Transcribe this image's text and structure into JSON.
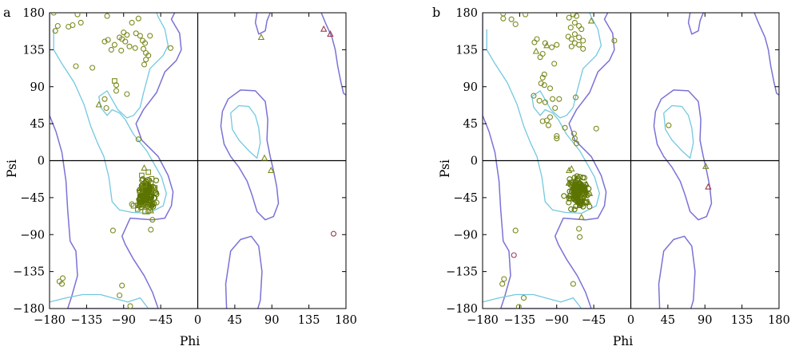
{
  "chart_data": [
    {
      "type": "scatter",
      "panel": "a",
      "xlabel": "Phi",
      "ylabel": "Psi",
      "xlim": [
        -180,
        180
      ],
      "ylim": [
        -180,
        180
      ],
      "xticks": [
        -180,
        -135,
        -90,
        -45,
        0,
        45,
        90,
        135,
        180
      ],
      "yticks": [
        180,
        135,
        90,
        45,
        0,
        -45,
        -90,
        -135,
        -180
      ],
      "cluster": {
        "center": [
          -62,
          -40
        ],
        "spread": [
          5,
          8
        ],
        "count": 160,
        "seed": 11
      },
      "points": {
        "circle": [
          [
            -175,
            180
          ],
          [
            -146,
            178
          ],
          [
            -142,
            168
          ],
          [
            -157,
            163
          ],
          [
            -152,
            165
          ],
          [
            -110,
            176
          ],
          [
            -80,
            168
          ],
          [
            -72,
            173
          ],
          [
            -90,
            156
          ],
          [
            -86,
            153
          ],
          [
            -95,
            150
          ],
          [
            -92,
            148
          ],
          [
            -88,
            145
          ],
          [
            -75,
            155
          ],
          [
            -70,
            152
          ],
          [
            -67,
            146
          ],
          [
            -64,
            143
          ],
          [
            -58,
            152
          ],
          [
            -83,
            139
          ],
          [
            -76,
            137
          ],
          [
            -66,
            136
          ],
          [
            -63,
            131
          ],
          [
            -60,
            128
          ],
          [
            -109,
            147
          ],
          [
            -113,
            145
          ],
          [
            -101,
            141
          ],
          [
            -105,
            135
          ],
          [
            -93,
            134
          ],
          [
            -63,
            123
          ],
          [
            -65,
            117
          ],
          [
            -148,
            115
          ],
          [
            -128,
            113
          ],
          [
            -99,
            92
          ],
          [
            -99,
            85
          ],
          [
            -86,
            81
          ],
          [
            -113,
            75
          ],
          [
            -111,
            64
          ],
          [
            -72,
            26
          ],
          [
            -80,
            -53
          ],
          [
            -103,
            -85
          ],
          [
            -55,
            -72
          ],
          [
            -57,
            -84
          ],
          [
            -50,
            -51
          ],
          [
            -60,
            -62
          ],
          [
            -168,
            -147
          ],
          [
            -164,
            -143
          ],
          [
            -165,
            -150
          ],
          [
            -92,
            -152
          ],
          [
            -95,
            -164
          ],
          [
            -82,
            -177
          ],
          [
            -33,
            137
          ],
          [
            -170,
            164
          ],
          [
            -173,
            158
          ]
        ],
        "square": [
          [
            -60,
            -14
          ],
          [
            -68,
            -18
          ],
          [
            -56,
            -22
          ],
          [
            -70,
            -36
          ],
          [
            -64,
            -62
          ],
          [
            -73,
            -59
          ],
          [
            -52,
            -33
          ],
          [
            -65,
            -29
          ],
          [
            -62,
            -55
          ],
          [
            -69,
            -57
          ],
          [
            -78,
            -55
          ],
          [
            -101,
            97
          ]
        ],
        "triangle": [
          [
            -120,
            68
          ],
          [
            -65,
            -9
          ],
          [
            -57,
            -61
          ],
          [
            -53,
            -37
          ]
        ],
        "gly_triangle": [
          [
            153,
            160
          ],
          [
            161,
            154
          ]
        ],
        "gly_circle": [
          [
            165,
            -89
          ]
        ],
        "pro_triangle": [
          [
            77,
            150
          ],
          [
            81,
            3
          ],
          [
            89,
            -12
          ]
        ]
      },
      "colors": {
        "residue": "#7B8A1E",
        "dense": "#5C7400",
        "gly": "#9C3C4C",
        "pro": "#7B8A1E"
      }
    },
    {
      "type": "scatter",
      "panel": "b",
      "xlabel": "Phi",
      "ylabel": "Psi",
      "xlim": [
        -180,
        180
      ],
      "ylim": [
        -180,
        180
      ],
      "xticks": [
        -180,
        -135,
        -90,
        -45,
        0,
        45,
        90,
        135,
        180
      ],
      "yticks": [
        180,
        135,
        90,
        45,
        0,
        -45,
        -90,
        -135,
        -180
      ],
      "cluster": {
        "center": [
          -63,
          -39
        ],
        "spread": [
          5,
          8
        ],
        "count": 170,
        "seed": 23
      },
      "points": {
        "circle": [
          [
            -155,
            179
          ],
          [
            -155,
            173
          ],
          [
            -145,
            172
          ],
          [
            -140,
            166
          ],
          [
            -128,
            178
          ],
          [
            -70,
            178
          ],
          [
            -75,
            174
          ],
          [
            -66,
            176
          ],
          [
            -68,
            168
          ],
          [
            -63,
            164
          ],
          [
            -73,
            162
          ],
          [
            -60,
            160
          ],
          [
            -68,
            154
          ],
          [
            -63,
            150
          ],
          [
            -76,
            151
          ],
          [
            -72,
            148
          ],
          [
            -58,
            146
          ],
          [
            -68,
            143
          ],
          [
            -63,
            141
          ],
          [
            -72,
            139
          ],
          [
            -58,
            136
          ],
          [
            -114,
            148
          ],
          [
            -117,
            144
          ],
          [
            -104,
            143
          ],
          [
            -90,
            141
          ],
          [
            -96,
            138
          ],
          [
            -107,
            130
          ],
          [
            -110,
            126
          ],
          [
            -93,
            118
          ],
          [
            -105,
            105
          ],
          [
            -107,
            101
          ],
          [
            -109,
            94
          ],
          [
            -105,
            92
          ],
          [
            -98,
            88
          ],
          [
            -118,
            79
          ],
          [
            -111,
            73
          ],
          [
            -95,
            75
          ],
          [
            -104,
            71
          ],
          [
            -87,
            75
          ],
          [
            -67,
            77
          ],
          [
            -92,
            64
          ],
          [
            -98,
            53
          ],
          [
            -107,
            48
          ],
          [
            -102,
            49
          ],
          [
            -100,
            43
          ],
          [
            -80,
            40
          ],
          [
            -90,
            30
          ],
          [
            -90,
            27
          ],
          [
            -69,
            33
          ],
          [
            -68,
            27
          ],
          [
            -66,
            21
          ],
          [
            -42,
            39
          ],
          [
            -20,
            146
          ],
          [
            46,
            43
          ],
          [
            -140,
            -85
          ],
          [
            -63,
            -83
          ],
          [
            -62,
            -93
          ],
          [
            -70,
            -150
          ],
          [
            -154,
            -144
          ],
          [
            -156,
            -150
          ],
          [
            -136,
            -178
          ],
          [
            -130,
            -167
          ]
        ],
        "square": [],
        "triangle": [
          [
            -115,
            133
          ],
          [
            -102,
            140
          ],
          [
            -72,
            -10
          ],
          [
            -75,
            -12
          ],
          [
            -60,
            -69
          ],
          [
            -52,
            -50
          ],
          [
            -58,
            -43
          ],
          [
            -50,
            -40
          ]
        ],
        "gly_triangle": [
          [
            94,
            -32
          ]
        ],
        "gly_circle": [
          [
            -142,
            -115
          ]
        ],
        "pro_triangle": [
          [
            -48,
            170
          ],
          [
            91,
            -7
          ]
        ]
      },
      "colors": {
        "residue": "#7B8A1E",
        "dense": "#5C7400",
        "gly": "#9C3C4C",
        "pro": "#7B8A1E"
      }
    }
  ]
}
